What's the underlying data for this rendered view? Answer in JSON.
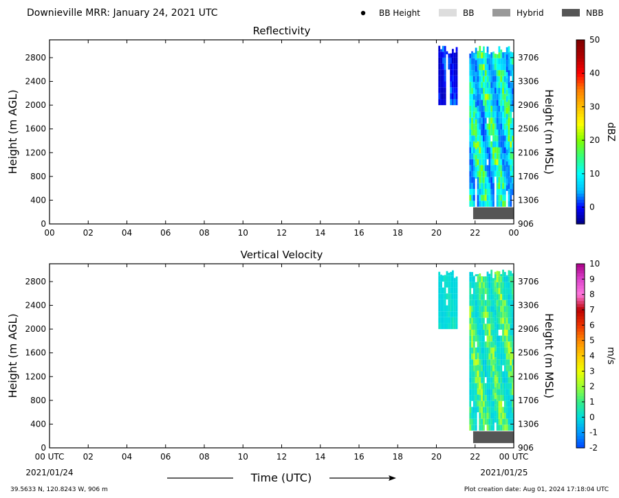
{
  "header": {
    "title": "Downieville MRR:  January 24, 2021 UTC",
    "legend": [
      {
        "label": "BB Height",
        "kind": "dot",
        "color": "#000000"
      },
      {
        "label": "BB",
        "kind": "box",
        "color": "#dddddd"
      },
      {
        "label": "Hybrid",
        "kind": "box",
        "color": "#999999"
      },
      {
        "label": "NBB",
        "kind": "box",
        "color": "#555555"
      }
    ]
  },
  "footer": {
    "location": "39.5633 N, 120.8243 W, 906 m",
    "creation": "Plot creation date: Aug 01, 2024 17:18:04 UTC",
    "time_label": "Time (UTC)",
    "start_date": "2021/01/24",
    "end_date": "2021/01/25"
  },
  "chart_data": [
    {
      "type": "heatmap",
      "title": "Reflectivity",
      "ylabel": "Height (m AGL)",
      "ylabel_right": "Height (m MSL)",
      "x_ticks": [
        "00",
        "02",
        "04",
        "06",
        "08",
        "10",
        "12",
        "14",
        "16",
        "18",
        "20",
        "22",
        "00"
      ],
      "xlim_hours": [
        0,
        24
      ],
      "y_ticks": [
        0,
        400,
        800,
        1200,
        1600,
        2000,
        2400,
        2800
      ],
      "ylim": [
        0,
        3100
      ],
      "y_ticks_right": [
        906,
        1306,
        1706,
        2106,
        2506,
        2906,
        3306,
        3706
      ],
      "colorbar": {
        "label": "dBZ",
        "range": [
          -5,
          50
        ],
        "ticks": [
          0,
          10,
          20,
          30,
          40,
          50
        ],
        "colors": [
          "#00007f",
          "#0000ff",
          "#00bfff",
          "#00ffff",
          "#32ff7f",
          "#7fff00",
          "#ffff00",
          "#ffbf00",
          "#ff7f00",
          "#ff0000",
          "#b00000",
          "#7f0000"
        ]
      },
      "regions": [
        {
          "start_hour": 20.1,
          "end_hour": 21.1,
          "bottom_m": 2000,
          "top_m": 3000,
          "low": -3,
          "high": 5
        },
        {
          "start_hour": 21.7,
          "end_hour": 24.0,
          "bottom_m": 290,
          "top_m": 3000,
          "low": 0,
          "high": 24
        }
      ],
      "bb_status": {
        "category": "NBB",
        "start_hour": 21.9,
        "end_hour": 24.0
      }
    },
    {
      "type": "heatmap",
      "title": "Vertical Velocity",
      "ylabel": "Height (m AGL)",
      "ylabel_right": "Height (m MSL)",
      "x_ticks": [
        "00 UTC",
        "02",
        "04",
        "06",
        "08",
        "10",
        "12",
        "14",
        "16",
        "18",
        "20",
        "22",
        "00 UTC"
      ],
      "xlim_hours": [
        0,
        24
      ],
      "y_ticks": [
        0,
        400,
        800,
        1200,
        1600,
        2000,
        2400,
        2800
      ],
      "ylim": [
        0,
        3100
      ],
      "y_ticks_right": [
        906,
        1306,
        1706,
        2106,
        2506,
        2906,
        3306,
        3706
      ],
      "colorbar": {
        "label": "m/s",
        "range": [
          -2,
          10
        ],
        "ticks": [
          -2,
          -1,
          0,
          1,
          2,
          3,
          4,
          5,
          6,
          7,
          8,
          9,
          10
        ],
        "colors": [
          "#0044ff",
          "#0099ff",
          "#00dddd",
          "#33ee88",
          "#99ff33",
          "#eeff00",
          "#ffcc00",
          "#ff8800",
          "#ee3300",
          "#bb0000",
          "#ff77dd",
          "#dd44cc",
          "#aa0088"
        ]
      },
      "regions": [
        {
          "start_hour": 20.1,
          "end_hour": 21.1,
          "bottom_m": 2000,
          "top_m": 3000,
          "low": -0.2,
          "high": 0.5
        },
        {
          "start_hour": 21.7,
          "end_hour": 24.0,
          "bottom_m": 290,
          "top_m": 3000,
          "low": -0.5,
          "high": 2.8
        }
      ],
      "bb_status": {
        "category": "NBB",
        "start_hour": 21.9,
        "end_hour": 24.0
      }
    }
  ]
}
